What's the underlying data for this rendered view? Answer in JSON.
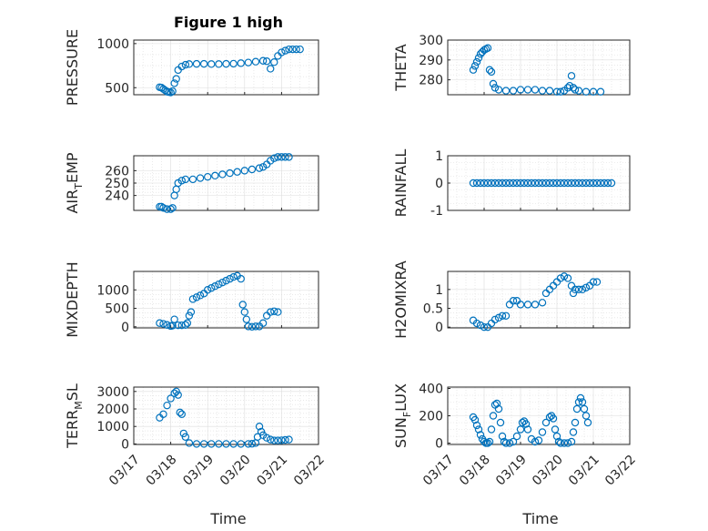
{
  "figure": {
    "title": "Figure 1 high",
    "xlabel": "Time"
  },
  "colors": {
    "marker": "#0072BD",
    "axis": "#262626",
    "grid": "#dcdcdc",
    "background": "#ffffff"
  },
  "chart_data": [
    {
      "type": "scatter",
      "ylabel": "PRESSURE",
      "xlim": [
        "03/17",
        "03/22"
      ],
      "ylim": [
        420,
        1040
      ],
      "yticks": [
        500,
        1000
      ],
      "points": [
        [
          17.7,
          505
        ],
        [
          17.75,
          500
        ],
        [
          17.8,
          485
        ],
        [
          17.85,
          470
        ],
        [
          17.9,
          455
        ],
        [
          17.95,
          450
        ],
        [
          18.0,
          445
        ],
        [
          18.05,
          460
        ],
        [
          18.1,
          550
        ],
        [
          18.15,
          600
        ],
        [
          18.2,
          700
        ],
        [
          18.3,
          740
        ],
        [
          18.4,
          760
        ],
        [
          18.5,
          768
        ],
        [
          18.7,
          770
        ],
        [
          18.9,
          770
        ],
        [
          19.1,
          768
        ],
        [
          19.3,
          768
        ],
        [
          19.5,
          770
        ],
        [
          19.7,
          772
        ],
        [
          19.9,
          778
        ],
        [
          20.1,
          785
        ],
        [
          20.3,
          795
        ],
        [
          20.5,
          805
        ],
        [
          20.6,
          800
        ],
        [
          20.7,
          715
        ],
        [
          20.8,
          790
        ],
        [
          20.9,
          860
        ],
        [
          21.0,
          900
        ],
        [
          21.1,
          920
        ],
        [
          21.2,
          935
        ],
        [
          21.3,
          935
        ],
        [
          21.4,
          935
        ],
        [
          21.5,
          935
        ]
      ]
    },
    {
      "type": "scatter",
      "ylabel": "THETA",
      "xlim": [
        "03/17",
        "03/22"
      ],
      "ylim": [
        272.5,
        300
      ],
      "yticks": [
        280,
        290,
        300
      ],
      "points": [
        [
          17.7,
          285
        ],
        [
          17.75,
          287
        ],
        [
          17.8,
          289
        ],
        [
          17.85,
          291
        ],
        [
          17.9,
          293
        ],
        [
          17.95,
          294
        ],
        [
          18.0,
          295
        ],
        [
          18.05,
          295.5
        ],
        [
          18.1,
          296
        ],
        [
          18.15,
          285
        ],
        [
          18.2,
          284
        ],
        [
          18.25,
          278
        ],
        [
          18.3,
          276
        ],
        [
          18.4,
          275
        ],
        [
          18.6,
          274.5
        ],
        [
          18.8,
          274.5
        ],
        [
          19.0,
          275
        ],
        [
          19.2,
          275
        ],
        [
          19.4,
          275
        ],
        [
          19.6,
          274.5
        ],
        [
          19.8,
          274.5
        ],
        [
          20.0,
          274
        ],
        [
          20.1,
          274
        ],
        [
          20.2,
          274.5
        ],
        [
          20.3,
          276
        ],
        [
          20.35,
          277
        ],
        [
          20.4,
          282
        ],
        [
          20.45,
          276
        ],
        [
          20.5,
          275
        ],
        [
          20.6,
          274.5
        ],
        [
          20.8,
          274
        ],
        [
          21.0,
          274
        ],
        [
          21.2,
          274
        ]
      ]
    },
    {
      "type": "scatter",
      "ylabel": "AIR_TEMP",
      "xlim": [
        "03/17",
        "03/22"
      ],
      "ylim": [
        228,
        272
      ],
      "yticks": [
        240,
        250,
        260
      ],
      "points": [
        [
          17.7,
          231
        ],
        [
          17.75,
          231
        ],
        [
          17.8,
          230
        ],
        [
          17.9,
          229
        ],
        [
          18.0,
          229
        ],
        [
          18.05,
          230
        ],
        [
          18.1,
          240
        ],
        [
          18.15,
          245
        ],
        [
          18.2,
          250
        ],
        [
          18.3,
          252
        ],
        [
          18.4,
          253
        ],
        [
          18.6,
          253
        ],
        [
          18.8,
          254
        ],
        [
          19.0,
          255
        ],
        [
          19.2,
          256
        ],
        [
          19.4,
          257
        ],
        [
          19.6,
          258
        ],
        [
          19.8,
          259
        ],
        [
          20.0,
          260
        ],
        [
          20.2,
          261
        ],
        [
          20.4,
          262
        ],
        [
          20.5,
          263
        ],
        [
          20.6,
          265
        ],
        [
          20.7,
          268
        ],
        [
          20.8,
          270
        ],
        [
          20.9,
          271
        ],
        [
          21.0,
          271
        ],
        [
          21.1,
          271
        ],
        [
          21.2,
          271
        ]
      ]
    },
    {
      "type": "scatter",
      "ylabel": "RAINFALL",
      "xlim": [
        "03/17",
        "03/22"
      ],
      "ylim": [
        -1,
        1
      ],
      "yticks": [
        -1,
        0,
        1
      ],
      "points": [
        [
          17.7,
          0
        ],
        [
          17.8,
          0
        ],
        [
          17.9,
          0
        ],
        [
          18.0,
          0
        ],
        [
          18.1,
          0
        ],
        [
          18.2,
          0
        ],
        [
          18.3,
          0
        ],
        [
          18.4,
          0
        ],
        [
          18.5,
          0
        ],
        [
          18.6,
          0
        ],
        [
          18.7,
          0
        ],
        [
          18.8,
          0
        ],
        [
          18.9,
          0
        ],
        [
          19.0,
          0
        ],
        [
          19.1,
          0
        ],
        [
          19.2,
          0
        ],
        [
          19.3,
          0
        ],
        [
          19.4,
          0
        ],
        [
          19.5,
          0
        ],
        [
          19.6,
          0
        ],
        [
          19.7,
          0
        ],
        [
          19.8,
          0
        ],
        [
          19.9,
          0
        ],
        [
          20.0,
          0
        ],
        [
          20.1,
          0
        ],
        [
          20.2,
          0
        ],
        [
          20.3,
          0
        ],
        [
          20.4,
          0
        ],
        [
          20.5,
          0
        ],
        [
          20.6,
          0
        ],
        [
          20.7,
          0
        ],
        [
          20.8,
          0
        ],
        [
          20.9,
          0
        ],
        [
          21.0,
          0
        ],
        [
          21.1,
          0
        ],
        [
          21.2,
          0
        ],
        [
          21.3,
          0
        ],
        [
          21.4,
          0
        ],
        [
          21.5,
          0
        ]
      ]
    },
    {
      "type": "scatter",
      "ylabel": "MIXDEPTH",
      "xlim": [
        "03/17",
        "03/22"
      ],
      "ylim": [
        -30,
        1500
      ],
      "yticks": [
        0,
        500,
        1000
      ],
      "points": [
        [
          17.7,
          100
        ],
        [
          17.8,
          80
        ],
        [
          17.9,
          50
        ],
        [
          18.0,
          20
        ],
        [
          18.05,
          30
        ],
        [
          18.1,
          200
        ],
        [
          18.2,
          40
        ],
        [
          18.3,
          40
        ],
        [
          18.4,
          50
        ],
        [
          18.45,
          100
        ],
        [
          18.5,
          300
        ],
        [
          18.55,
          400
        ],
        [
          18.6,
          750
        ],
        [
          18.7,
          800
        ],
        [
          18.8,
          850
        ],
        [
          18.9,
          900
        ],
        [
          19.0,
          1000
        ],
        [
          19.1,
          1050
        ],
        [
          19.2,
          1100
        ],
        [
          19.3,
          1150
        ],
        [
          19.4,
          1200
        ],
        [
          19.5,
          1250
        ],
        [
          19.6,
          1300
        ],
        [
          19.7,
          1350
        ],
        [
          19.8,
          1380
        ],
        [
          19.9,
          1300
        ],
        [
          19.95,
          600
        ],
        [
          20.0,
          400
        ],
        [
          20.05,
          200
        ],
        [
          20.1,
          10
        ],
        [
          20.2,
          0
        ],
        [
          20.3,
          10
        ],
        [
          20.4,
          10
        ],
        [
          20.5,
          100
        ],
        [
          20.6,
          300
        ],
        [
          20.7,
          400
        ],
        [
          20.8,
          420
        ],
        [
          20.9,
          400
        ]
      ]
    },
    {
      "type": "scatter",
      "ylabel": "H2OMIXRA",
      "xlim": [
        "03/17",
        "03/22"
      ],
      "ylim": [
        -0.02,
        1.48
      ],
      "yticks": [
        0,
        0.5,
        1
      ],
      "points": [
        [
          17.7,
          0.18
        ],
        [
          17.8,
          0.1
        ],
        [
          17.9,
          0.05
        ],
        [
          18.0,
          0
        ],
        [
          18.1,
          0
        ],
        [
          18.2,
          0.1
        ],
        [
          18.3,
          0.2
        ],
        [
          18.4,
          0.25
        ],
        [
          18.5,
          0.3
        ],
        [
          18.6,
          0.3
        ],
        [
          18.7,
          0.6
        ],
        [
          18.8,
          0.7
        ],
        [
          18.9,
          0.7
        ],
        [
          19.0,
          0.6
        ],
        [
          19.2,
          0.6
        ],
        [
          19.4,
          0.6
        ],
        [
          19.6,
          0.65
        ],
        [
          19.7,
          0.9
        ],
        [
          19.8,
          1.0
        ],
        [
          19.9,
          1.1
        ],
        [
          20.0,
          1.2
        ],
        [
          20.1,
          1.3
        ],
        [
          20.2,
          1.35
        ],
        [
          20.3,
          1.3
        ],
        [
          20.4,
          1.1
        ],
        [
          20.45,
          0.9
        ],
        [
          20.5,
          1.0
        ],
        [
          20.6,
          1.0
        ],
        [
          20.7,
          1.0
        ],
        [
          20.8,
          1.05
        ],
        [
          20.9,
          1.1
        ],
        [
          21.0,
          1.2
        ],
        [
          21.1,
          1.2
        ]
      ]
    },
    {
      "type": "scatter",
      "ylabel": "TERR_MSL",
      "xlim": [
        "03/17",
        "03/22"
      ],
      "ylim": [
        -30,
        3250
      ],
      "yticks": [
        0,
        1000,
        2000,
        3000
      ],
      "points": [
        [
          17.7,
          1500
        ],
        [
          17.8,
          1700
        ],
        [
          17.9,
          2200
        ],
        [
          18.0,
          2600
        ],
        [
          18.1,
          2900
        ],
        [
          18.15,
          3000
        ],
        [
          18.2,
          2800
        ],
        [
          18.25,
          1800
        ],
        [
          18.3,
          1700
        ],
        [
          18.35,
          600
        ],
        [
          18.4,
          400
        ],
        [
          18.5,
          50
        ],
        [
          18.7,
          0
        ],
        [
          18.9,
          0
        ],
        [
          19.1,
          0
        ],
        [
          19.3,
          0
        ],
        [
          19.5,
          0
        ],
        [
          19.7,
          0
        ],
        [
          19.9,
          0
        ],
        [
          20.1,
          0
        ],
        [
          20.2,
          10
        ],
        [
          20.3,
          50
        ],
        [
          20.35,
          400
        ],
        [
          20.4,
          1000
        ],
        [
          20.45,
          700
        ],
        [
          20.5,
          500
        ],
        [
          20.6,
          350
        ],
        [
          20.7,
          250
        ],
        [
          20.8,
          200
        ],
        [
          20.9,
          200
        ],
        [
          21.0,
          210
        ],
        [
          21.1,
          230
        ],
        [
          21.2,
          250
        ]
      ]
    },
    {
      "type": "scatter",
      "ylabel": "SUN_FLUX",
      "xlim": [
        "03/17",
        "03/22"
      ],
      "ylim": [
        -10,
        410
      ],
      "yticks": [
        0,
        200,
        400
      ],
      "points": [
        [
          17.7,
          190
        ],
        [
          17.75,
          170
        ],
        [
          17.8,
          130
        ],
        [
          17.85,
          100
        ],
        [
          17.9,
          60
        ],
        [
          17.95,
          30
        ],
        [
          18.0,
          10
        ],
        [
          18.05,
          0
        ],
        [
          18.1,
          0
        ],
        [
          18.15,
          10
        ],
        [
          18.2,
          100
        ],
        [
          18.25,
          200
        ],
        [
          18.3,
          280
        ],
        [
          18.35,
          290
        ],
        [
          18.4,
          250
        ],
        [
          18.45,
          150
        ],
        [
          18.5,
          50
        ],
        [
          18.55,
          10
        ],
        [
          18.6,
          0
        ],
        [
          18.7,
          0
        ],
        [
          18.8,
          10
        ],
        [
          18.9,
          50
        ],
        [
          19.0,
          100
        ],
        [
          19.05,
          150
        ],
        [
          19.1,
          160
        ],
        [
          19.15,
          140
        ],
        [
          19.2,
          100
        ],
        [
          19.3,
          30
        ],
        [
          19.4,
          10
        ],
        [
          19.5,
          20
        ],
        [
          19.6,
          80
        ],
        [
          19.7,
          150
        ],
        [
          19.8,
          190
        ],
        [
          19.85,
          200
        ],
        [
          19.9,
          180
        ],
        [
          19.95,
          100
        ],
        [
          20.0,
          50
        ],
        [
          20.05,
          10
        ],
        [
          20.1,
          0
        ],
        [
          20.2,
          0
        ],
        [
          20.3,
          0
        ],
        [
          20.4,
          10
        ],
        [
          20.45,
          80
        ],
        [
          20.5,
          150
        ],
        [
          20.55,
          250
        ],
        [
          20.6,
          300
        ],
        [
          20.65,
          330
        ],
        [
          20.7,
          300
        ],
        [
          20.75,
          250
        ],
        [
          20.8,
          200
        ],
        [
          20.85,
          150
        ]
      ]
    }
  ]
}
